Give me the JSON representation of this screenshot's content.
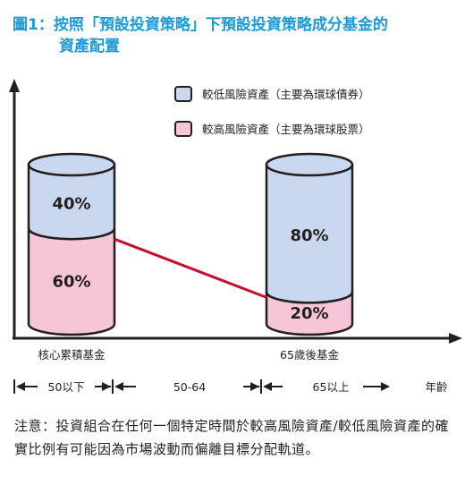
{
  "title": {
    "line1": "圖1：按照「預設投資策略」下預設投資策略成分基金的",
    "line2": "資產配置"
  },
  "chart_data": {
    "type": "bar",
    "stacked": true,
    "categories": [
      "核心累積基金",
      "65歲後基金"
    ],
    "series": [
      {
        "name": "較低風險資產（主要為環球債券）",
        "values": [
          40,
          80
        ],
        "color": "#c9d8ee"
      },
      {
        "name": "較高風險資產（主要為環球股票）",
        "values": [
          60,
          20
        ],
        "color": "#f7c5d8"
      }
    ],
    "data_labels": [
      {
        "bottom": "60%",
        "top": "40%"
      },
      {
        "bottom": "20%",
        "top": "80%"
      }
    ],
    "ylim": [
      0,
      100
    ],
    "connector_color": "#c8102e",
    "legend_position": "top-right",
    "age_axis": {
      "label": "年齡",
      "ranges": [
        "50以下",
        "50-64",
        "65以上"
      ]
    }
  },
  "note": "注意：投資組合在任何一個特定時間於較高風險資產/較低風險資產的確實比例有可能因為市場波動而偏離目標分配軌道。"
}
